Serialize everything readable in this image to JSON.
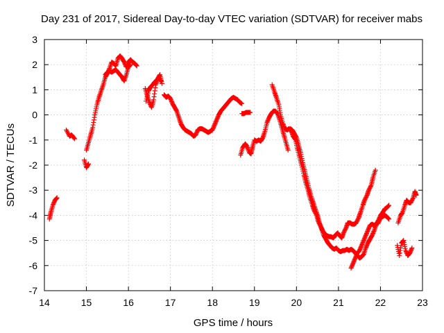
{
  "chart_data": {
    "type": "scatter",
    "title": "Day 231 of 2017, Sidereal Day-to-day VTEC variation (SDTVAR) for receiver mabs",
    "xlabel": "GPS time / hours",
    "ylabel": "SDTVAR / TECUs",
    "xlim": [
      14,
      23
    ],
    "ylim": [
      -7,
      3
    ],
    "xticks": [
      "14",
      "15",
      "16",
      "17",
      "18",
      "19",
      "20",
      "21",
      "22",
      "23"
    ],
    "yticks": [
      "-7",
      "-6",
      "-5",
      "-4",
      "-3",
      "-2",
      "-1",
      "0",
      "1",
      "2",
      "3"
    ],
    "grid": true,
    "marker": "plus",
    "color": "#ff0000",
    "segments": [
      [
        [
          14.12,
          -4.15
        ],
        [
          14.15,
          -3.9
        ],
        [
          14.2,
          -3.6
        ],
        [
          14.25,
          -3.4
        ],
        [
          14.3,
          -3.3
        ]
      ],
      [
        [
          14.52,
          -0.6
        ],
        [
          14.6,
          -0.85
        ],
        [
          14.65,
          -0.8
        ],
        [
          14.72,
          -0.95
        ]
      ],
      [
        [
          14.95,
          -1.8
        ],
        [
          15.0,
          -2.1
        ],
        [
          15.05,
          -1.95
        ]
      ],
      [
        [
          15.0,
          -1.4
        ],
        [
          15.05,
          -1.1
        ],
        [
          15.1,
          -0.8
        ],
        [
          15.15,
          -0.5
        ],
        [
          15.2,
          0.0
        ],
        [
          15.25,
          0.4
        ],
        [
          15.3,
          0.7
        ],
        [
          15.35,
          0.95
        ],
        [
          15.4,
          1.2
        ],
        [
          15.45,
          1.5
        ],
        [
          15.5,
          1.65
        ],
        [
          15.55,
          1.85
        ],
        [
          15.6,
          2.1
        ],
        [
          15.65,
          2.05
        ],
        [
          15.7,
          1.95
        ],
        [
          15.75,
          2.25
        ],
        [
          15.8,
          2.35
        ],
        [
          15.85,
          2.25
        ],
        [
          15.9,
          2.1
        ],
        [
          15.95,
          1.9
        ],
        [
          16.0,
          2.1
        ],
        [
          16.05,
          2.2
        ],
        [
          16.1,
          2.1
        ],
        [
          16.15,
          2.05
        ],
        [
          16.2,
          1.95
        ]
      ],
      [
        [
          15.45,
          1.6
        ],
        [
          15.5,
          1.7
        ],
        [
          15.55,
          1.75
        ],
        [
          15.6,
          1.7
        ],
        [
          15.65,
          1.75
        ],
        [
          15.7,
          1.8
        ],
        [
          15.75,
          1.7
        ],
        [
          15.8,
          1.6
        ],
        [
          15.85,
          1.5
        ],
        [
          15.9,
          1.35
        ],
        [
          15.95,
          1.6
        ],
        [
          16.0,
          1.9
        ],
        [
          16.05,
          2.0
        ]
      ],
      [
        [
          16.4,
          1.05
        ],
        [
          16.45,
          0.75
        ],
        [
          16.5,
          0.5
        ],
        [
          16.55,
          0.3
        ],
        [
          16.6,
          0.6
        ],
        [
          16.65,
          1.2
        ],
        [
          16.7,
          1.45
        ],
        [
          16.75,
          1.6
        ],
        [
          16.8,
          1.25
        ]
      ],
      [
        [
          16.42,
          0.55
        ],
        [
          16.48,
          0.95
        ],
        [
          16.52,
          1.1
        ],
        [
          16.58,
          1.2
        ],
        [
          16.62,
          1.3
        ],
        [
          16.68,
          1.4
        ],
        [
          16.72,
          1.45
        ],
        [
          16.78,
          1.35
        ]
      ],
      [
        [
          16.85,
          0.8
        ],
        [
          16.9,
          0.7
        ],
        [
          16.95,
          0.75
        ],
        [
          17.0,
          0.65
        ],
        [
          17.05,
          0.45
        ],
        [
          17.1,
          0.3
        ],
        [
          17.15,
          0.15
        ],
        [
          17.2,
          -0.1
        ],
        [
          17.25,
          -0.35
        ],
        [
          17.3,
          -0.5
        ],
        [
          17.35,
          -0.6
        ],
        [
          17.4,
          -0.65
        ],
        [
          17.45,
          -0.7
        ],
        [
          17.5,
          -0.75
        ],
        [
          17.55,
          -0.85
        ],
        [
          17.6,
          -0.8
        ],
        [
          17.65,
          -0.6
        ],
        [
          17.7,
          -0.55
        ],
        [
          17.75,
          -0.55
        ],
        [
          17.8,
          -0.6
        ],
        [
          17.85,
          -0.65
        ],
        [
          17.9,
          -0.7
        ],
        [
          17.95,
          -0.65
        ],
        [
          18.0,
          -0.6
        ],
        [
          18.05,
          -0.4
        ],
        [
          18.1,
          -0.2
        ],
        [
          18.15,
          0.0
        ],
        [
          18.2,
          0.15
        ],
        [
          18.25,
          0.25
        ],
        [
          18.3,
          0.35
        ],
        [
          18.35,
          0.45
        ],
        [
          18.4,
          0.55
        ],
        [
          18.45,
          0.65
        ],
        [
          18.5,
          0.7
        ],
        [
          18.55,
          0.65
        ],
        [
          18.6,
          0.6
        ],
        [
          18.65,
          0.5
        ],
        [
          18.7,
          0.45
        ]
      ],
      [
        [
          18.7,
          0.05
        ],
        [
          18.75,
          0.05
        ],
        [
          18.8,
          0.1
        ],
        [
          18.85,
          0.1
        ],
        [
          18.9,
          0.1
        ]
      ],
      [
        [
          18.67,
          -1.6
        ],
        [
          18.72,
          -1.3
        ],
        [
          18.78,
          -1.15
        ],
        [
          18.82,
          -1.25
        ],
        [
          18.88,
          -1.5
        ],
        [
          18.92,
          -1.55
        ],
        [
          18.95,
          -1.3
        ],
        [
          19.0,
          -1.0
        ],
        [
          19.05,
          -1.05
        ],
        [
          19.1,
          -1.0
        ],
        [
          19.15,
          -1.05
        ],
        [
          19.2,
          -0.9
        ],
        [
          19.25,
          -0.65
        ],
        [
          19.3,
          -0.3
        ],
        [
          19.35,
          -0.1
        ],
        [
          19.4,
          0.05
        ],
        [
          19.45,
          0.15
        ],
        [
          19.5,
          0.15
        ],
        [
          19.55,
          0.05
        ],
        [
          19.6,
          -0.2
        ],
        [
          19.65,
          -0.5
        ],
        [
          19.7,
          -0.8
        ],
        [
          19.75,
          -1.1
        ],
        [
          19.8,
          -1.4
        ]
      ],
      [
        [
          19.42,
          1.2
        ],
        [
          19.48,
          0.9
        ],
        [
          19.52,
          0.7
        ],
        [
          19.58,
          0.4
        ],
        [
          19.62,
          0.0
        ],
        [
          19.68,
          -0.35
        ],
        [
          19.72,
          -0.55
        ],
        [
          19.78,
          -0.6
        ],
        [
          19.82,
          -0.55
        ],
        [
          19.88,
          -0.65
        ],
        [
          19.92,
          -0.85
        ],
        [
          19.98,
          -1.0
        ],
        [
          20.02,
          -1.35
        ],
        [
          20.08,
          -1.7
        ],
        [
          20.12,
          -2.0
        ],
        [
          20.18,
          -2.4
        ],
        [
          20.22,
          -2.7
        ],
        [
          20.28,
          -3.0
        ],
        [
          20.32,
          -3.3
        ],
        [
          20.38,
          -3.6
        ],
        [
          20.42,
          -3.8
        ],
        [
          20.48,
          -4.0
        ],
        [
          20.52,
          -4.25
        ],
        [
          20.58,
          -4.45
        ],
        [
          20.62,
          -4.6
        ],
        [
          20.68,
          -4.75
        ],
        [
          20.72,
          -4.8
        ],
        [
          20.78,
          -4.85
        ],
        [
          20.82,
          -4.85
        ],
        [
          20.88,
          -4.9
        ],
        [
          20.92,
          -4.8
        ],
        [
          20.98,
          -4.7
        ],
        [
          21.02,
          -4.8
        ],
        [
          21.08,
          -4.9
        ],
        [
          21.12,
          -4.7
        ],
        [
          21.18,
          -4.5
        ],
        [
          21.22,
          -4.3
        ],
        [
          21.28,
          -4.3
        ],
        [
          21.32,
          -4.35
        ],
        [
          21.38,
          -4.35
        ],
        [
          21.42,
          -4.3
        ],
        [
          21.48,
          -4.1
        ],
        [
          21.52,
          -3.9
        ],
        [
          21.58,
          -3.6
        ],
        [
          21.62,
          -3.4
        ],
        [
          21.68,
          -3.2
        ],
        [
          21.72,
          -3.0
        ],
        [
          21.78,
          -2.8
        ],
        [
          21.82,
          -2.5
        ],
        [
          21.88,
          -2.2
        ]
      ],
      [
        [
          19.85,
          -0.55
        ],
        [
          19.9,
          -0.6
        ],
        [
          19.95,
          -0.75
        ],
        [
          20.0,
          -0.9
        ],
        [
          20.05,
          -1.2
        ],
        [
          20.1,
          -1.5
        ],
        [
          20.15,
          -1.9
        ],
        [
          20.2,
          -2.25
        ],
        [
          20.25,
          -2.6
        ],
        [
          20.3,
          -2.95
        ],
        [
          20.35,
          -3.25
        ],
        [
          20.4,
          -3.5
        ],
        [
          20.45,
          -3.75
        ],
        [
          20.5,
          -4.0
        ],
        [
          20.55,
          -4.3
        ],
        [
          20.6,
          -4.55
        ],
        [
          20.65,
          -4.8
        ],
        [
          20.7,
          -4.95
        ],
        [
          20.75,
          -5.1
        ],
        [
          20.8,
          -5.2
        ],
        [
          20.85,
          -5.3
        ],
        [
          20.9,
          -5.35
        ],
        [
          20.95,
          -5.3
        ],
        [
          21.0,
          -5.4
        ],
        [
          21.05,
          -5.45
        ],
        [
          21.1,
          -5.4
        ],
        [
          21.15,
          -5.4
        ],
        [
          21.2,
          -5.35
        ],
        [
          21.25,
          -5.4
        ],
        [
          21.3,
          -5.35
        ],
        [
          21.35,
          -5.4
        ],
        [
          21.4,
          -5.5
        ],
        [
          21.45,
          -5.6
        ],
        [
          21.5,
          -5.7
        ],
        [
          21.55,
          -5.65
        ],
        [
          21.6,
          -5.55
        ],
        [
          21.65,
          -5.3
        ],
        [
          21.7,
          -5.1
        ],
        [
          21.75,
          -4.95
        ],
        [
          21.8,
          -4.8
        ],
        [
          21.85,
          -4.6
        ],
        [
          21.9,
          -4.35
        ],
        [
          21.95,
          -4.2
        ],
        [
          22.0,
          -4.0
        ],
        [
          22.05,
          -3.9
        ],
        [
          22.1,
          -3.75
        ],
        [
          22.15,
          -3.7
        ],
        [
          22.2,
          -3.6
        ]
      ],
      [
        [
          21.3,
          -6.1
        ],
        [
          21.35,
          -5.9
        ],
        [
          21.4,
          -5.7
        ],
        [
          21.45,
          -5.5
        ],
        [
          21.5,
          -5.4
        ],
        [
          21.55,
          -5.2
        ],
        [
          21.6,
          -5.0
        ],
        [
          21.65,
          -4.8
        ],
        [
          21.7,
          -4.6
        ],
        [
          21.75,
          -4.4
        ],
        [
          21.8,
          -4.35
        ],
        [
          21.85,
          -4.4
        ],
        [
          21.9,
          -4.35
        ],
        [
          21.95,
          -4.3
        ],
        [
          22.0,
          -4.1
        ],
        [
          22.05,
          -4.05
        ],
        [
          22.1,
          -4.0
        ],
        [
          22.15,
          -4.05
        ],
        [
          22.2,
          -4.15
        ]
      ],
      [
        [
          22.4,
          -5.2
        ],
        [
          22.45,
          -5.6
        ],
        [
          22.5,
          -5.1
        ],
        [
          22.55,
          -5.0
        ],
        [
          22.6,
          -5.4
        ],
        [
          22.65,
          -5.6
        ],
        [
          22.7,
          -5.5
        ],
        [
          22.75,
          -5.3
        ]
      ],
      [
        [
          22.42,
          -4.3
        ],
        [
          22.48,
          -4.0
        ],
        [
          22.52,
          -3.9
        ],
        [
          22.58,
          -3.6
        ],
        [
          22.62,
          -3.4
        ],
        [
          22.68,
          -3.5
        ],
        [
          22.72,
          -3.5
        ],
        [
          22.78,
          -3.3
        ],
        [
          22.82,
          -3.05
        ],
        [
          22.85,
          -3.2
        ]
      ]
    ]
  }
}
